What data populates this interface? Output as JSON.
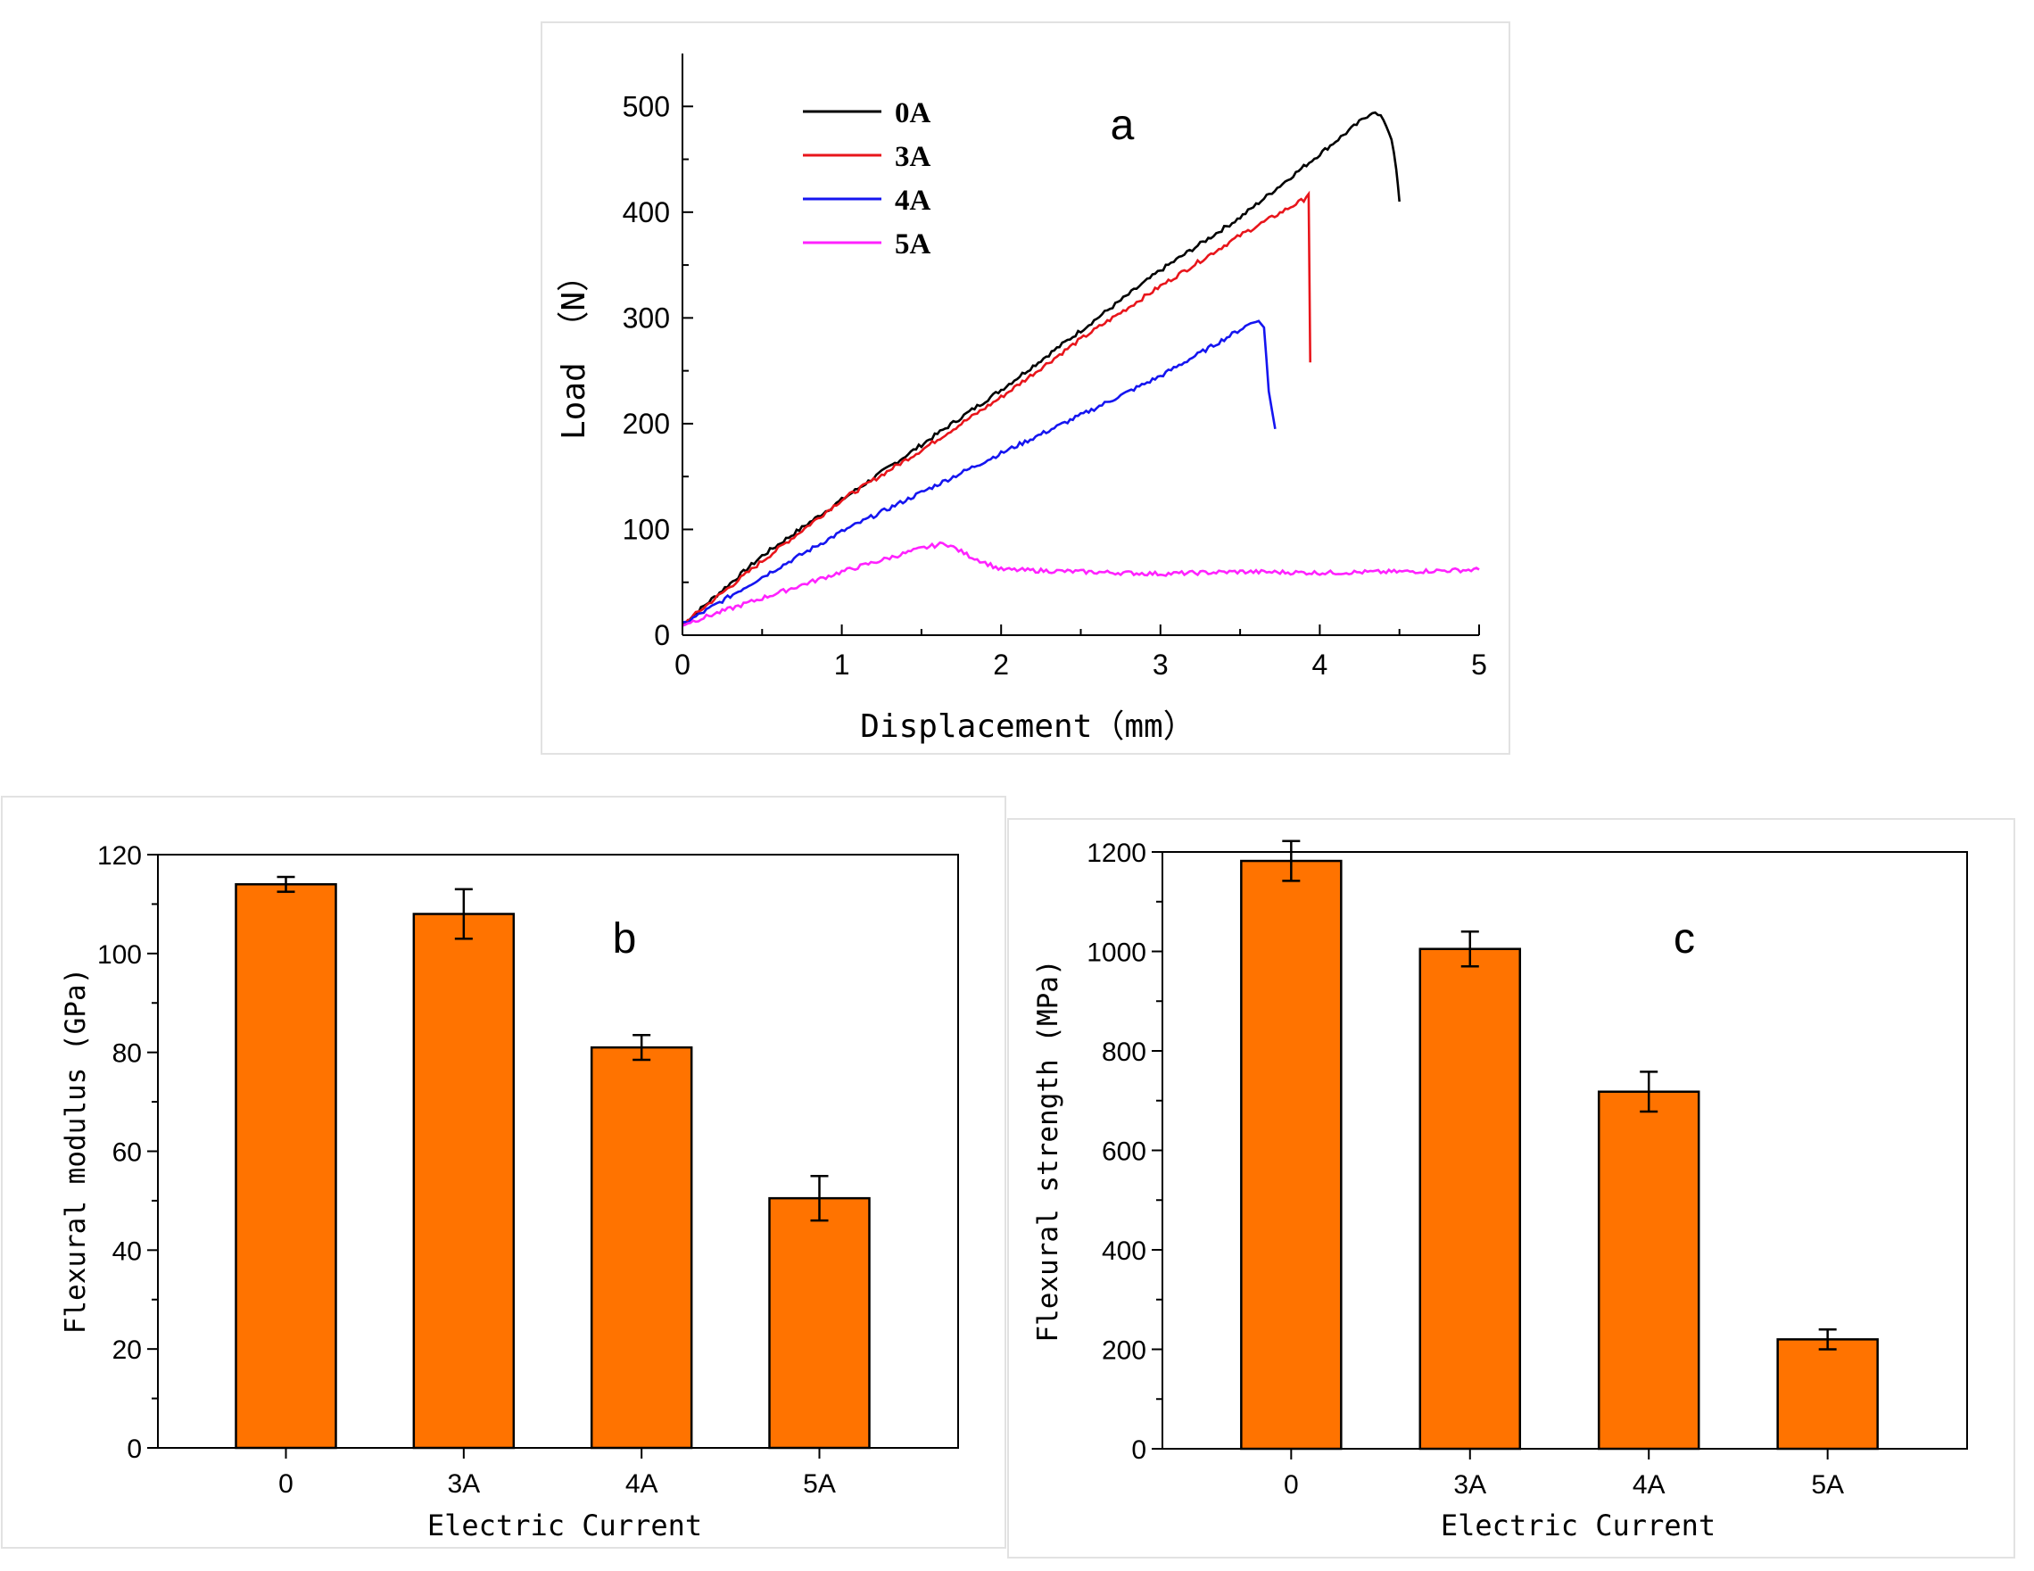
{
  "chart_data": [
    {
      "type": "line",
      "panel_letter": "a",
      "xlabel": "Displacement（mm）",
      "ylabel": "Load （N）",
      "xlim": [
        0,
        5
      ],
      "ylim": [
        0,
        550
      ],
      "x_ticks": [
        0,
        1,
        2,
        3,
        4,
        5
      ],
      "y_ticks": [
        0,
        100,
        200,
        300,
        400,
        500
      ],
      "legend_position": "top-left",
      "series": [
        {
          "name": "0A",
          "color": "#000000",
          "points": [
            [
              0,
              10
            ],
            [
              0.5,
              75
            ],
            [
              1,
              128
            ],
            [
              1.5,
              180
            ],
            [
              2,
              232
            ],
            [
              2.5,
              288
            ],
            [
              3,
              345
            ],
            [
              3.5,
              395
            ],
            [
              4,
              455
            ],
            [
              4.33,
              495
            ],
            [
              4.4,
              488
            ],
            [
              4.45,
              470
            ],
            [
              4.48,
              440
            ],
            [
              4.5,
              410
            ]
          ]
        },
        {
          "name": "3A",
          "color": "#e8151b",
          "points": [
            [
              0,
              10
            ],
            [
              0.5,
              70
            ],
            [
              1,
              128
            ],
            [
              1.5,
              175
            ],
            [
              2,
              225
            ],
            [
              2.5,
              280
            ],
            [
              3,
              330
            ],
            [
              3.5,
              378
            ],
            [
              3.9,
              412
            ],
            [
              3.93,
              418
            ],
            [
              3.94,
              258
            ]
          ]
        },
        {
          "name": "4A",
          "color": "#1515f0",
          "points": [
            [
              0,
              10
            ],
            [
              0.5,
              55
            ],
            [
              1,
              98
            ],
            [
              1.5,
              135
            ],
            [
              2,
              172
            ],
            [
              2.5,
              208
            ],
            [
              3,
              245
            ],
            [
              3.4,
              280
            ],
            [
              3.6,
              298
            ],
            [
              3.65,
              292
            ],
            [
              3.68,
              230
            ],
            [
              3.72,
              195
            ]
          ]
        },
        {
          "name": "5A",
          "color": "#ff22ff",
          "points": [
            [
              0,
              10
            ],
            [
              0.5,
              35
            ],
            [
              1,
              60
            ],
            [
              1.5,
              82
            ],
            [
              1.65,
              87
            ],
            [
              1.8,
              75
            ],
            [
              2,
              62
            ],
            [
              2.5,
              60
            ],
            [
              3,
              58
            ],
            [
              3.5,
              60
            ],
            [
              4,
              59
            ],
            [
              4.5,
              60
            ],
            [
              5,
              62
            ]
          ]
        }
      ]
    },
    {
      "type": "bar",
      "panel_letter": "b",
      "categories": [
        "0",
        "3A",
        "4A",
        "5A"
      ],
      "values": [
        114,
        108,
        81,
        50.5
      ],
      "errors": [
        1.5,
        5,
        2.5,
        4.5
      ],
      "xlabel": "Electric Current",
      "ylabel": "Flexural modulus (GPa)",
      "ylim": [
        0,
        120
      ],
      "y_ticks": [
        0,
        20,
        40,
        60,
        80,
        100,
        120
      ],
      "bar_color": "#ff7300"
    },
    {
      "type": "bar",
      "panel_letter": "c",
      "categories": [
        "0",
        "3A",
        "4A",
        "5A"
      ],
      "values": [
        1182,
        1005,
        718,
        220
      ],
      "errors": [
        40,
        35,
        40,
        20
      ],
      "xlabel": "Electric Current",
      "ylabel": "Flexural strength (MPa)",
      "ylim": [
        0,
        1200
      ],
      "y_ticks": [
        0,
        200,
        400,
        600,
        800,
        1000,
        1200
      ],
      "bar_color": "#ff7300"
    }
  ]
}
